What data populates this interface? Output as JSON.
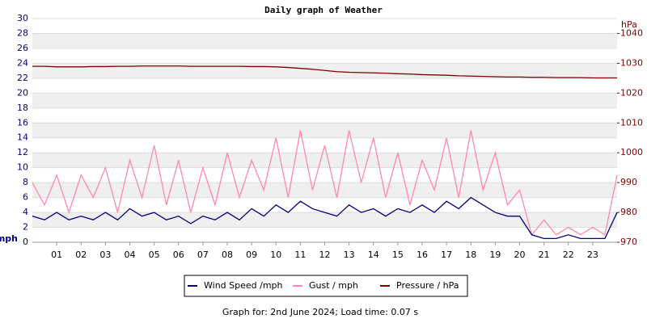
{
  "chart_data": {
    "type": "line",
    "title": "Daily graph of Weather",
    "footer": "Graph for: 2nd June 2024; Load time: 0.07 s",
    "ylabel": "mph",
    "y2label": "hPa",
    "x": [
      0,
      0.5,
      1,
      1.5,
      2,
      2.5,
      3,
      3.5,
      4,
      4.5,
      5,
      5.5,
      6,
      6.5,
      7,
      7.5,
      8,
      8.5,
      9,
      9.5,
      10,
      10.5,
      11,
      11.5,
      12,
      12.5,
      13,
      13.5,
      14,
      14.5,
      15,
      15.5,
      16,
      16.5,
      17,
      17.5,
      18,
      18.5,
      19,
      19.5,
      20,
      20.5,
      21,
      21.5,
      22,
      22.5,
      23,
      23.5,
      24
    ],
    "xlim": [
      0,
      24
    ],
    "xticks": [
      {
        "value": 1,
        "label": "01"
      },
      {
        "value": 2,
        "label": "02"
      },
      {
        "value": 3,
        "label": "03"
      },
      {
        "value": 4,
        "label": "04"
      },
      {
        "value": 5,
        "label": "05"
      },
      {
        "value": 6,
        "label": "06"
      },
      {
        "value": 7,
        "label": "07"
      },
      {
        "value": 8,
        "label": "08"
      },
      {
        "value": 9,
        "label": "09"
      },
      10,
      11,
      12,
      13,
      14,
      15,
      16,
      17,
      18,
      19,
      20,
      21,
      22,
      23
    ],
    "ylim": [
      0,
      30
    ],
    "yticks": [
      0,
      2,
      4,
      6,
      8,
      10,
      12,
      14,
      16,
      18,
      20,
      22,
      24,
      26,
      28,
      30
    ],
    "y2lim": [
      970,
      1045
    ],
    "y2ticks": [
      970,
      980,
      990,
      1000,
      1010,
      1020,
      1030,
      1040
    ],
    "grid": true,
    "legend": "bottom",
    "series": [
      {
        "name": "Wind Speed /mph",
        "color": "#000080",
        "values": [
          3.5,
          3,
          4,
          3,
          3.5,
          3,
          4,
          3,
          4.5,
          3.5,
          4,
          3,
          3.5,
          2.5,
          3.5,
          3,
          4,
          3,
          4.5,
          3.5,
          5,
          4,
          5.5,
          4.5,
          4,
          3.5,
          5,
          4,
          4.5,
          3.5,
          4.5,
          4,
          5,
          4,
          5.5,
          4.5,
          6,
          5,
          4,
          3.5,
          3.5,
          1,
          0.5,
          0.5,
          1,
          0.5,
          0.5,
          0.5,
          4
        ]
      },
      {
        "name": "Gust / mph",
        "color": "#ff88aa",
        "values": [
          8,
          5,
          9,
          4,
          9,
          6,
          10,
          4,
          11,
          6,
          13,
          5,
          11,
          4,
          10,
          5,
          12,
          6,
          11,
          7,
          14,
          6,
          15,
          7,
          13,
          6,
          15,
          8,
          14,
          6,
          12,
          5,
          11,
          7,
          14,
          6,
          15,
          7,
          12,
          5,
          7,
          1,
          3,
          1,
          2,
          1,
          2,
          1,
          9
        ]
      },
      {
        "name": "Pressure / hPa",
        "color": "#800000",
        "axis": "y2",
        "values": [
          1029,
          1029,
          1028.8,
          1028.8,
          1028.8,
          1028.9,
          1028.9,
          1029,
          1029,
          1029.1,
          1029.1,
          1029.1,
          1029.1,
          1029,
          1029,
          1029,
          1029,
          1029,
          1028.9,
          1028.9,
          1028.8,
          1028.6,
          1028.3,
          1028,
          1027.6,
          1027.2,
          1027,
          1026.9,
          1026.8,
          1026.7,
          1026.5,
          1026.4,
          1026.2,
          1026.1,
          1026,
          1025.8,
          1025.7,
          1025.6,
          1025.5,
          1025.4,
          1025.4,
          1025.3,
          1025.3,
          1025.2,
          1025.2,
          1025.2,
          1025.1,
          1025.1,
          1025.1
        ]
      }
    ]
  }
}
